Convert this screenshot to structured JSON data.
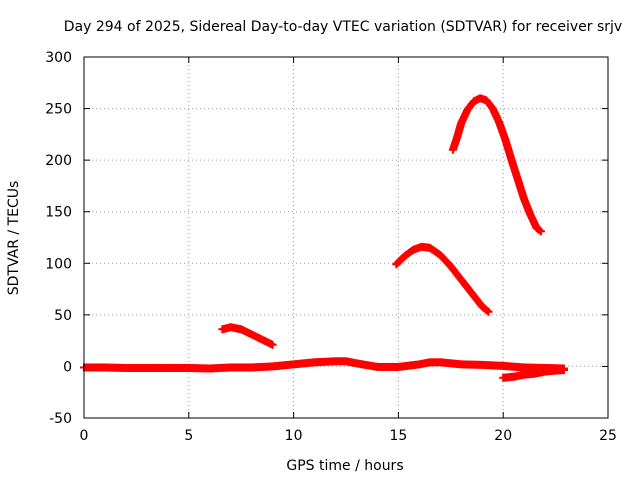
{
  "chart_data": {
    "type": "scatter",
    "title": "Day 294 of 2025, Sidereal Day-to-day VTEC variation (SDTVAR) for receiver srjv",
    "xlabel": "GPS time / hours",
    "ylabel": "SDTVAR / TECUs",
    "xlim": [
      0,
      25
    ],
    "ylim": [
      -50,
      300
    ],
    "xticks": [
      0,
      5,
      10,
      15,
      20,
      25
    ],
    "yticks": [
      -50,
      0,
      50,
      100,
      150,
      200,
      250,
      300
    ],
    "grid": true,
    "legend": "none",
    "series": [
      {
        "color": "#ff0000",
        "marker": "plus",
        "points": [
          [
            0.0,
            -1
          ],
          [
            1.0,
            -1
          ],
          [
            2.0,
            -1.5
          ],
          [
            3.0,
            -1.5
          ],
          [
            4.0,
            -1.5
          ],
          [
            5.0,
            -1.5
          ],
          [
            6.0,
            -2
          ],
          [
            7.0,
            -1
          ],
          [
            8.0,
            -1
          ],
          [
            9.0,
            0
          ],
          [
            10.0,
            2
          ],
          [
            11.0,
            4
          ],
          [
            12.0,
            5
          ],
          [
            12.5,
            5
          ],
          [
            13.0,
            3
          ],
          [
            14.0,
            -0.5
          ],
          [
            15.0,
            -0.5
          ],
          [
            16.0,
            2
          ],
          [
            16.5,
            4
          ],
          [
            17.0,
            4
          ],
          [
            18.0,
            2
          ],
          [
            19.0,
            1.5
          ],
          [
            20.0,
            0.5
          ],
          [
            21.0,
            -1
          ],
          [
            22.0,
            -1.5
          ],
          [
            22.9,
            -2
          ],
          [
            20.0,
            -11
          ],
          [
            20.5,
            -10
          ],
          [
            21.0,
            -8
          ],
          [
            21.5,
            -7
          ],
          [
            22.0,
            -5
          ],
          [
            22.5,
            -4
          ],
          [
            22.9,
            -3.5
          ],
          [
            6.6,
            36
          ],
          [
            7.0,
            38
          ],
          [
            7.5,
            36
          ],
          [
            8.0,
            31
          ],
          [
            8.5,
            26
          ],
          [
            9.0,
            21
          ],
          [
            14.9,
            99
          ],
          [
            15.3,
            107
          ],
          [
            15.7,
            113
          ],
          [
            16.1,
            116
          ],
          [
            16.5,
            115
          ],
          [
            17.0,
            108
          ],
          [
            17.5,
            97
          ],
          [
            18.0,
            84
          ],
          [
            18.5,
            71
          ],
          [
            19.0,
            58
          ],
          [
            19.3,
            53
          ],
          [
            17.6,
            210
          ],
          [
            17.8,
            222
          ],
          [
            18.0,
            236
          ],
          [
            18.3,
            249
          ],
          [
            18.6,
            257
          ],
          [
            18.9,
            260
          ],
          [
            19.2,
            258
          ],
          [
            19.5,
            250
          ],
          [
            19.8,
            237
          ],
          [
            20.1,
            220
          ],
          [
            20.4,
            200
          ],
          [
            20.7,
            181
          ],
          [
            21.0,
            162
          ],
          [
            21.3,
            147
          ],
          [
            21.6,
            134
          ],
          [
            21.8,
            131
          ]
        ]
      }
    ]
  }
}
